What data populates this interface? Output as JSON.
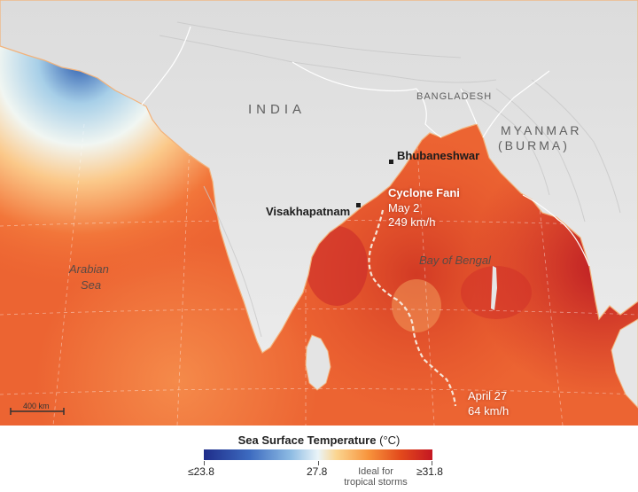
{
  "labels": {
    "india": "INDIA",
    "bangladesh": "BANGLADESH",
    "myanmar_line1": "MYANMAR",
    "myanmar_line2": "(BURMA)",
    "arabian_sea_line1": "Arabian",
    "arabian_sea_line2": "Sea",
    "bay_of_bengal": "Bay of Bengal",
    "bhubaneshwar": "Bhubaneshwar",
    "visakhapatnam": "Visakhapatnam",
    "cyclone_name": "Cyclone Fani",
    "cyclone_date": "May 2",
    "cyclone_speed": "249 km/h",
    "start_date": "April 27",
    "start_speed": "64 km/h",
    "scale_bar": "400 km"
  },
  "legend": {
    "title": "Sea Surface Temperature",
    "unit": "(°C)",
    "min_label": "≤23.8",
    "mid_label": "27.8",
    "max_label": "≥31.8",
    "note_line1": "Ideal for",
    "note_line2": "tropical storms",
    "colors": [
      "#1f2d8a",
      "#8dbbe3",
      "#eaf4f8",
      "#f7943c",
      "#c41722"
    ]
  }
}
